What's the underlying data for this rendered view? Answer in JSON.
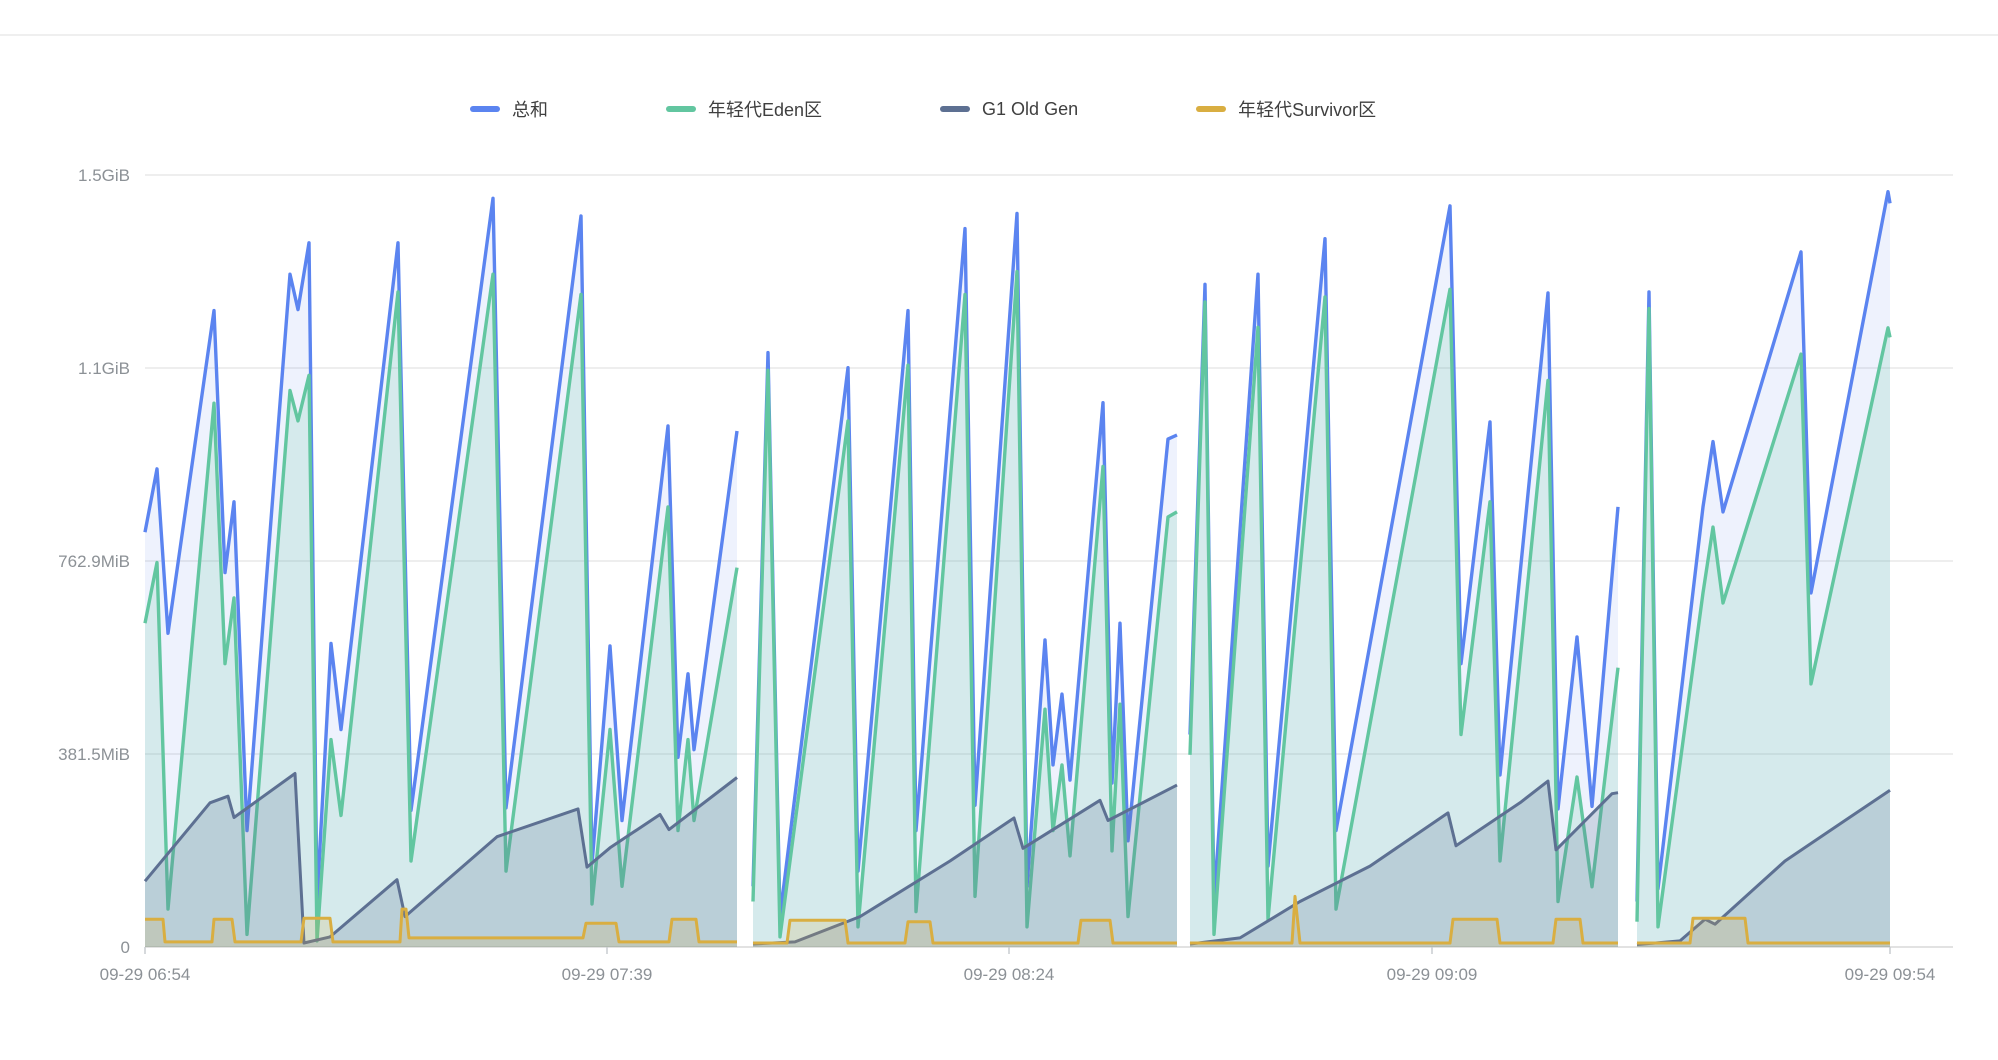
{
  "page": {
    "background": "#ffffff",
    "top_divider_color": "#efefef"
  },
  "legend": {
    "items": [
      {
        "label": "总和",
        "color": "#5B84F0"
      },
      {
        "label": "年轻代Eden区",
        "color": "#62C6A0"
      },
      {
        "label": "G1 Old Gen",
        "color": "#5D7092"
      },
      {
        "label": "年轻代Survivor区",
        "color": "#D9AE41"
      }
    ]
  },
  "chart_data": {
    "type": "area",
    "title": "",
    "xlabel": "",
    "ylabel": "",
    "unit": "bytes (binary)",
    "grid": "horizontal gridlines on, legend top-center",
    "y_axis": {
      "max_mib": 1580,
      "ticks": [
        {
          "label": "0",
          "mib": 0
        },
        {
          "label": "381.5MiB",
          "mib": 381.5
        },
        {
          "label": "762.9MiB",
          "mib": 762.9
        },
        {
          "label": "1.1GiB",
          "mib": 1144.4
        },
        {
          "label": "1.5GiB",
          "mib": 1525.9
        }
      ]
    },
    "x_axis": {
      "range": [
        0,
        1745
      ],
      "ticks": [
        {
          "label": "09-29 06:54",
          "u": 0
        },
        {
          "label": "09-29 07:39",
          "u": 462
        },
        {
          "label": "09-29 08:24",
          "u": 864
        },
        {
          "label": "09-29 09:09",
          "u": 1287
        },
        {
          "label": "09-29 09:54",
          "u": 1745
        }
      ]
    },
    "series": [
      {
        "name": "总和",
        "color": "#5B84F0",
        "fill": "rgba(91,132,240,0.10)",
        "width": 3.4,
        "segments": [
          [
            [
              0,
              820
            ],
            [
              12,
              945
            ],
            [
              23,
              620
            ],
            [
              69,
              1258
            ],
            [
              80,
              740
            ],
            [
              89,
              880
            ],
            [
              102,
              230
            ],
            [
              145,
              1330
            ],
            [
              153,
              1260
            ],
            [
              164,
              1392
            ],
            [
              172,
              90
            ],
            [
              186,
              600
            ],
            [
              196,
              430
            ],
            [
              253,
              1392
            ],
            [
              266,
              270
            ],
            [
              348,
              1480
            ],
            [
              361,
              275
            ],
            [
              436,
              1445
            ],
            [
              447,
              165
            ],
            [
              465,
              595
            ],
            [
              477,
              250
            ],
            [
              523,
              1030
            ],
            [
              533,
              375
            ],
            [
              543,
              540
            ],
            [
              549,
              390
            ],
            [
              592,
              1020
            ]
          ],
          [
            [
              608,
              120
            ],
            [
              623,
              1175
            ],
            [
              635,
              60
            ],
            [
              703,
              1145
            ],
            [
              713,
              150
            ],
            [
              763,
              1258
            ],
            [
              771,
              230
            ],
            [
              820,
              1420
            ],
            [
              830,
              280
            ],
            [
              872,
              1450
            ],
            [
              882,
              120
            ],
            [
              900,
              607
            ],
            [
              908,
              360
            ],
            [
              917,
              500
            ],
            [
              925,
              330
            ],
            [
              958,
              1076
            ],
            [
              967,
              324
            ],
            [
              975,
              640
            ],
            [
              983,
              210
            ],
            [
              1023,
              1004
            ],
            [
              1032,
              1012
            ]
          ],
          [
            [
              1045,
              420
            ],
            [
              1060,
              1310
            ],
            [
              1069,
              90
            ],
            [
              1113,
              1330
            ],
            [
              1123,
              160
            ],
            [
              1180,
              1400
            ],
            [
              1191,
              230
            ],
            [
              1305,
              1465
            ],
            [
              1316,
              560
            ],
            [
              1345,
              1038
            ],
            [
              1355,
              340
            ],
            [
              1403,
              1293
            ],
            [
              1413,
              273
            ],
            [
              1432,
              613
            ],
            [
              1447,
              278
            ],
            [
              1473,
              870
            ]
          ],
          [
            [
              1492,
              90
            ],
            [
              1504,
              1295
            ],
            [
              1513,
              115
            ],
            [
              1558,
              870
            ],
            [
              1568,
              999
            ],
            [
              1578,
              860
            ],
            [
              1656,
              1374
            ],
            [
              1666,
              700
            ],
            [
              1743,
              1493
            ],
            [
              1745,
              1470
            ]
          ]
        ]
      },
      {
        "name": "年轻代Eden区",
        "color": "#62C6A0",
        "fill": "rgba(98,198,160,0.18)",
        "width": 3.4,
        "segments": [
          [
            [
              0,
              640
            ],
            [
              12,
              760
            ],
            [
              23,
              75
            ],
            [
              69,
              1075
            ],
            [
              80,
              560
            ],
            [
              89,
              690
            ],
            [
              102,
              25
            ],
            [
              145,
              1100
            ],
            [
              153,
              1040
            ],
            [
              164,
              1130
            ],
            [
              172,
              12
            ],
            [
              186,
              410
            ],
            [
              196,
              260
            ],
            [
              253,
              1295
            ],
            [
              266,
              170
            ],
            [
              348,
              1330
            ],
            [
              361,
              150
            ],
            [
              436,
              1290
            ],
            [
              447,
              85
            ],
            [
              465,
              430
            ],
            [
              477,
              120
            ],
            [
              523,
              870
            ],
            [
              533,
              230
            ],
            [
              543,
              410
            ],
            [
              549,
              250
            ],
            [
              592,
              750
            ]
          ],
          [
            [
              608,
              90
            ],
            [
              623,
              1140
            ],
            [
              635,
              20
            ],
            [
              703,
              1040
            ],
            [
              713,
              40
            ],
            [
              763,
              1150
            ],
            [
              771,
              70
            ],
            [
              820,
              1290
            ],
            [
              830,
              100
            ],
            [
              872,
              1335
            ],
            [
              882,
              40
            ],
            [
              900,
              470
            ],
            [
              908,
              230
            ],
            [
              917,
              360
            ],
            [
              925,
              180
            ],
            [
              958,
              950
            ],
            [
              967,
              190
            ],
            [
              975,
              480
            ],
            [
              983,
              60
            ],
            [
              1023,
              850
            ],
            [
              1032,
              860
            ]
          ],
          [
            [
              1045,
              380
            ],
            [
              1060,
              1275
            ],
            [
              1069,
              25
            ],
            [
              1113,
              1225
            ],
            [
              1123,
              55
            ],
            [
              1180,
              1285
            ],
            [
              1191,
              75
            ],
            [
              1305,
              1300
            ],
            [
              1316,
              420
            ],
            [
              1345,
              880
            ],
            [
              1355,
              170
            ],
            [
              1403,
              1120
            ],
            [
              1413,
              90
            ],
            [
              1432,
              336
            ],
            [
              1447,
              119
            ],
            [
              1473,
              552
            ]
          ],
          [
            [
              1492,
              50
            ],
            [
              1504,
              1262
            ],
            [
              1513,
              40
            ],
            [
              1558,
              700
            ],
            [
              1568,
              830
            ],
            [
              1578,
              680
            ],
            [
              1656,
              1172
            ],
            [
              1666,
              520
            ],
            [
              1743,
              1224
            ],
            [
              1745,
              1205
            ]
          ]
        ]
      },
      {
        "name": "G1 Old Gen",
        "color": "#5D7092",
        "fill": "rgba(93,112,146,0.22)",
        "width": 3,
        "segments": [
          [
            [
              0,
              130
            ],
            [
              65,
              285
            ],
            [
              83,
              298
            ],
            [
              89,
              256
            ],
            [
              150,
              343
            ],
            [
              159,
              8
            ],
            [
              185,
              20
            ],
            [
              252,
              133
            ],
            [
              260,
              60
            ],
            [
              352,
              218
            ],
            [
              433,
              273
            ],
            [
              442,
              158
            ],
            [
              465,
              196
            ],
            [
              515,
              262
            ],
            [
              524,
              232
            ],
            [
              592,
              335
            ]
          ],
          [
            [
              608,
              6
            ],
            [
              650,
              10
            ],
            [
              715,
              60
            ],
            [
              805,
              170
            ],
            [
              869,
              255
            ],
            [
              878,
              195
            ],
            [
              955,
              290
            ],
            [
              963,
              250
            ],
            [
              1032,
              320
            ]
          ],
          [
            [
              1045,
              6
            ],
            [
              1095,
              18
            ],
            [
              1155,
              90
            ],
            [
              1225,
              160
            ],
            [
              1303,
              265
            ],
            [
              1311,
              200
            ],
            [
              1375,
              285
            ],
            [
              1403,
              328
            ],
            [
              1411,
              192
            ],
            [
              1467,
              303
            ],
            [
              1473,
              305
            ]
          ],
          [
            [
              1492,
              5
            ],
            [
              1535,
              12
            ],
            [
              1560,
              55
            ],
            [
              1570,
              45
            ],
            [
              1640,
              170
            ],
            [
              1700,
              250
            ],
            [
              1745,
              310
            ]
          ]
        ]
      },
      {
        "name": "年轻代Survivor区",
        "color": "#D9AE41",
        "fill": "rgba(217,174,65,0.18)",
        "width": 3,
        "segments": [
          [
            [
              0,
              55
            ],
            [
              18,
              55
            ],
            [
              20,
              10
            ],
            [
              67,
              10
            ],
            [
              69,
              55
            ],
            [
              87,
              55
            ],
            [
              90,
              10
            ],
            [
              156,
              10
            ],
            [
              159,
              57
            ],
            [
              185,
              57
            ],
            [
              188,
              10
            ],
            [
              255,
              10
            ],
            [
              257,
              75
            ],
            [
              261,
              75
            ],
            [
              264,
              18
            ],
            [
              438,
              18
            ],
            [
              441,
              47
            ],
            [
              471,
              47
            ],
            [
              474,
              10
            ],
            [
              524,
              10
            ],
            [
              527,
              55
            ],
            [
              551,
              55
            ],
            [
              554,
              10
            ],
            [
              592,
              10
            ]
          ],
          [
            [
              608,
              8
            ],
            [
              642,
              8
            ],
            [
              645,
              53
            ],
            [
              700,
              53
            ],
            [
              703,
              8
            ],
            [
              760,
              8
            ],
            [
              763,
              50
            ],
            [
              785,
              50
            ],
            [
              788,
              8
            ],
            [
              933,
              8
            ],
            [
              936,
              53
            ],
            [
              965,
              53
            ],
            [
              968,
              8
            ],
            [
              1032,
              8
            ]
          ],
          [
            [
              1045,
              8
            ],
            [
              1147,
              8
            ],
            [
              1150,
              100
            ],
            [
              1155,
              8
            ],
            [
              1305,
              8
            ],
            [
              1308,
              55
            ],
            [
              1352,
              55
            ],
            [
              1355,
              8
            ],
            [
              1408,
              8
            ],
            [
              1411,
              55
            ],
            [
              1435,
              55
            ],
            [
              1438,
              8
            ],
            [
              1473,
              8
            ]
          ],
          [
            [
              1492,
              8
            ],
            [
              1545,
              8
            ],
            [
              1548,
              57
            ],
            [
              1600,
              57
            ],
            [
              1603,
              8
            ],
            [
              1745,
              8
            ]
          ]
        ]
      }
    ]
  }
}
